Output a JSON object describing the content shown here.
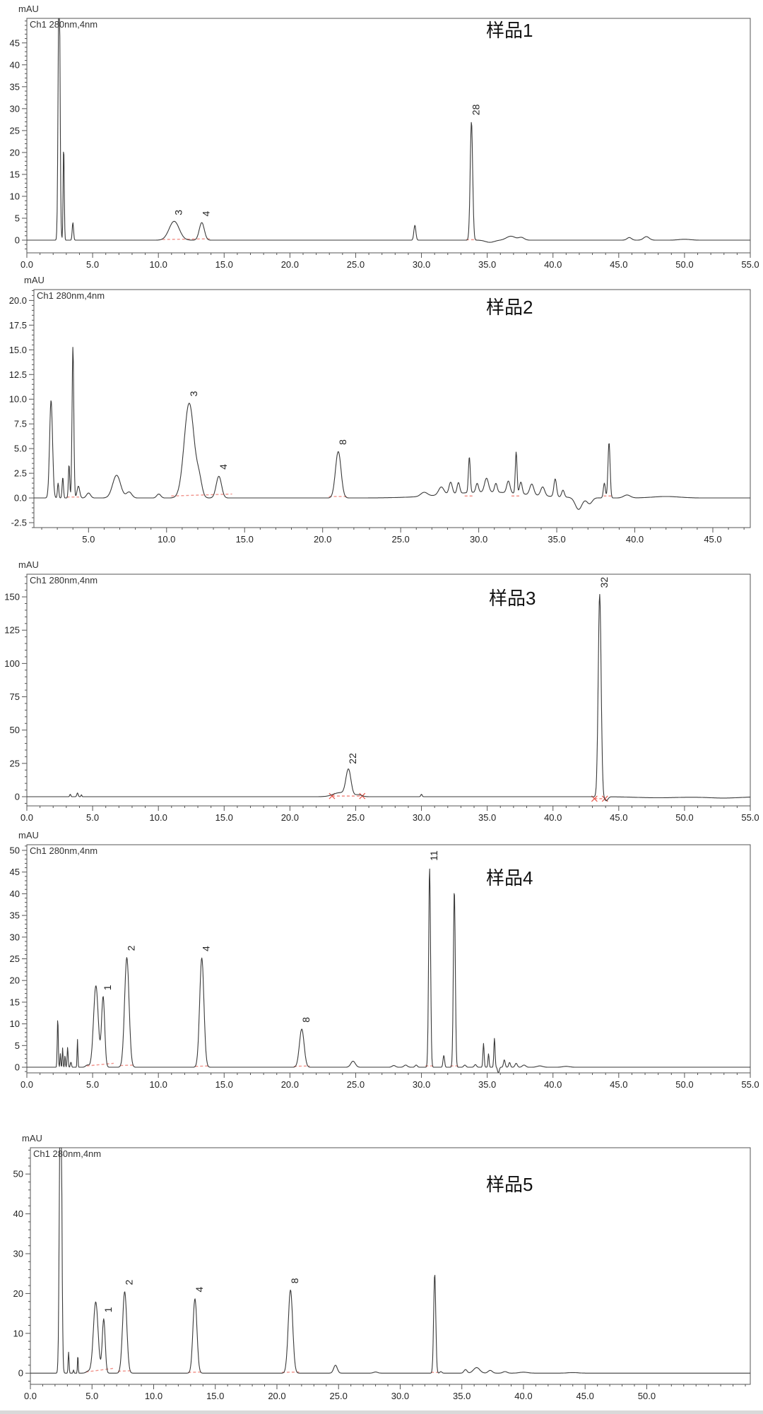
{
  "page": {
    "background": "#ffffff"
  },
  "chart_data": [
    {
      "type": "line",
      "sample_label": "样品1",
      "y_axis_title": "mAU",
      "channel_label": "Ch1 280nm,4nm",
      "xlabel": "",
      "ylabel": "mAU",
      "xlim": [
        0,
        55
      ],
      "ylim": [
        -2.9,
        50.6
      ],
      "x_ticks": {
        "start": 0,
        "end": 55,
        "major": 5,
        "minor": 1,
        "decimals": 1
      },
      "y_ticks": {
        "start": 0,
        "end": 45,
        "major": 5,
        "minor": 1,
        "decimals": 0
      },
      "peaks": [
        [
          2.45,
          68,
          0.16
        ],
        [
          2.8,
          21.5,
          0.1
        ],
        [
          3.5,
          4,
          0.12
        ],
        [
          11.2,
          4.3,
          0.9
        ],
        [
          13.3,
          4.0,
          0.45
        ],
        [
          29.5,
          3.4,
          0.18
        ],
        [
          33.8,
          27,
          0.22
        ],
        [
          35.2,
          -0.5,
          0.8
        ],
        [
          36.8,
          0.9,
          0.8
        ],
        [
          37.6,
          0.6,
          0.5
        ],
        [
          45.8,
          0.6,
          0.4
        ],
        [
          47.1,
          0.8,
          0.5
        ],
        [
          50.0,
          0.2,
          1.0
        ]
      ],
      "peak_labels": [
        [
          "3",
          11.2,
          4.4
        ],
        [
          "4",
          13.3,
          4.1
        ],
        [
          "28",
          33.8,
          27.2
        ]
      ],
      "baselines": [
        [
          10.3,
          0.15,
          14.0,
          0.3
        ],
        [
          33.4,
          0.1,
          34.2,
          0.1
        ]
      ],
      "baseline_marks": [],
      "colors": {
        "trace": "#3a3a3a",
        "baseline": "#f1938b",
        "axis": "#555555",
        "text": "#222222"
      }
    },
    {
      "type": "line",
      "sample_label": "样品2",
      "y_axis_title": "mAU",
      "channel_label": "Ch1 280nm,4nm",
      "xlabel": "",
      "ylabel": "mAU",
      "xlim": [
        1.5,
        47.4
      ],
      "ylim": [
        -3.0,
        21.1
      ],
      "x_ticks": {
        "start": 5,
        "end": 45,
        "major": 5,
        "minor": 1,
        "decimals": 1
      },
      "y_ticks": {
        "start": -2.5,
        "end": 20,
        "major": 2.5,
        "minor": 0.5,
        "decimals": 1
      },
      "peaks": [
        [
          2.6,
          9.9,
          0.22
        ],
        [
          3.05,
          1.5,
          0.1
        ],
        [
          3.35,
          2.1,
          0.1
        ],
        [
          3.75,
          3.4,
          0.1
        ],
        [
          4.0,
          15.3,
          0.13
        ],
        [
          4.35,
          1.2,
          0.2
        ],
        [
          5.0,
          0.5,
          0.3
        ],
        [
          6.8,
          2.3,
          0.6
        ],
        [
          7.6,
          0.6,
          0.4
        ],
        [
          9.5,
          0.4,
          0.3
        ],
        [
          11.45,
          9.6,
          0.75
        ],
        [
          12.1,
          1.5,
          0.4
        ],
        [
          13.35,
          2.2,
          0.4
        ],
        [
          21.0,
          4.7,
          0.42
        ],
        [
          26.5,
          0.4,
          0.5
        ],
        [
          27.6,
          0.8,
          0.4
        ],
        [
          28.2,
          1.2,
          0.25
        ],
        [
          28.7,
          1.1,
          0.2
        ],
        [
          29.4,
          3.6,
          0.14
        ],
        [
          29.9,
          0.9,
          0.2
        ],
        [
          30.5,
          1.4,
          0.3
        ],
        [
          31.1,
          0.9,
          0.2
        ],
        [
          30.5,
          0.6,
          6.0
        ],
        [
          31.9,
          1.2,
          0.25
        ],
        [
          32.4,
          4.2,
          0.13
        ],
        [
          32.7,
          1.2,
          0.2
        ],
        [
          33.4,
          1.1,
          0.3
        ],
        [
          34.1,
          0.9,
          0.3
        ],
        [
          34.9,
          1.8,
          0.2
        ],
        [
          35.4,
          0.7,
          0.2
        ],
        [
          36.4,
          -1.2,
          0.5
        ],
        [
          37.1,
          -0.6,
          0.4
        ],
        [
          38.05,
          1.5,
          0.15
        ],
        [
          38.35,
          5.6,
          0.16
        ],
        [
          39.5,
          0.3,
          0.5
        ],
        [
          42.0,
          0.15,
          2.0
        ]
      ],
      "peak_labels": [
        [
          "3",
          11.45,
          9.7
        ],
        [
          "4",
          13.35,
          2.3
        ],
        [
          "8",
          21.0,
          4.8
        ]
      ],
      "baselines": [
        [
          3.6,
          0.1,
          4.4,
          0.1
        ],
        [
          10.3,
          0.2,
          14.2,
          0.4
        ],
        [
          20.4,
          0.15,
          21.6,
          0.15
        ],
        [
          29.1,
          0.2,
          29.7,
          0.2
        ],
        [
          32.1,
          0.2,
          32.7,
          0.2
        ],
        [
          38.0,
          0.2,
          38.6,
          0.2
        ]
      ],
      "baseline_marks": [],
      "colors": {
        "trace": "#3a3a3a",
        "baseline": "#f1938b",
        "axis": "#555555",
        "text": "#222222"
      }
    },
    {
      "type": "line",
      "sample_label": "样品3",
      "y_axis_title": "mAU",
      "channel_label": "Ch1 280nm,4nm",
      "xlabel": "",
      "ylabel": "mAU",
      "xlim": [
        0,
        55
      ],
      "ylim": [
        -6.9,
        167
      ],
      "x_ticks": {
        "start": 0,
        "end": 55,
        "major": 5,
        "minor": 1,
        "decimals": 1
      },
      "y_ticks": {
        "start": 0,
        "end": 150,
        "major": 25,
        "minor": 5,
        "decimals": 0
      },
      "peaks": [
        [
          3.3,
          1.8,
          0.1
        ],
        [
          3.85,
          2.8,
          0.12
        ],
        [
          4.15,
          1.5,
          0.08
        ],
        [
          23.8,
          3.0,
          1.2
        ],
        [
          24.45,
          19.5,
          0.45
        ],
        [
          25.2,
          1.5,
          0.6
        ],
        [
          30.0,
          1.8,
          0.12
        ],
        [
          43.55,
          152,
          0.26
        ],
        [
          44.05,
          -3.0,
          0.3
        ],
        [
          48.0,
          -0.8,
          4.0
        ],
        [
          53.0,
          -1.0,
          3.0
        ]
      ],
      "peak_labels": [
        [
          "22",
          24.45,
          20.3
        ],
        [
          "32",
          43.55,
          152.5
        ]
      ],
      "baselines": [
        [
          23.2,
          0.5,
          25.5,
          0.5
        ],
        [
          43.15,
          -1.5,
          43.95,
          -1.5
        ]
      ],
      "baseline_marks": [
        [
          23.2,
          0.5
        ],
        [
          25.5,
          0.5
        ],
        [
          43.15,
          -1.5
        ],
        [
          43.95,
          -1.5
        ]
      ],
      "colors": {
        "trace": "#3a3a3a",
        "baseline": "#f08078",
        "axis": "#555555",
        "text": "#222222"
      }
    },
    {
      "type": "line",
      "sample_label": "样品4",
      "y_axis_title": "mAU",
      "channel_label": "Ch1 280nm,4nm",
      "xlabel": "",
      "ylabel": "mAU",
      "xlim": [
        0,
        55
      ],
      "ylim": [
        -1.3,
        51.3
      ],
      "x_ticks": {
        "start": 0,
        "end": 55,
        "major": 5,
        "minor": 1,
        "decimals": 1
      },
      "y_ticks": {
        "start": 0,
        "end": 50,
        "major": 5,
        "minor": 1,
        "decimals": 0
      },
      "peaks": [
        [
          2.35,
          11.3,
          0.09
        ],
        [
          2.55,
          3.2,
          0.07
        ],
        [
          2.72,
          4.5,
          0.07
        ],
        [
          2.9,
          2.8,
          0.07
        ],
        [
          3.1,
          4.6,
          0.09
        ],
        [
          3.35,
          1.2,
          0.1
        ],
        [
          3.85,
          6.4,
          0.07
        ],
        [
          4.6,
          0.5,
          0.3
        ],
        [
          5.25,
          18.8,
          0.42
        ],
        [
          5.8,
          16.2,
          0.28
        ],
        [
          7.6,
          25.3,
          0.4
        ],
        [
          13.3,
          25.2,
          0.38
        ],
        [
          20.9,
          8.8,
          0.42
        ],
        [
          24.8,
          1.4,
          0.4
        ],
        [
          27.9,
          0.4,
          0.3
        ],
        [
          28.8,
          0.5,
          0.3
        ],
        [
          29.6,
          0.5,
          0.2
        ],
        [
          30.62,
          46,
          0.17
        ],
        [
          31.7,
          2.7,
          0.14
        ],
        [
          32.5,
          41,
          0.17
        ],
        [
          33.3,
          0.5,
          0.2
        ],
        [
          34.1,
          0.6,
          0.2
        ],
        [
          34.72,
          5.5,
          0.11
        ],
        [
          35.1,
          3.1,
          0.1
        ],
        [
          35.55,
          6.7,
          0.11
        ],
        [
          35.85,
          -1.3,
          0.15
        ],
        [
          36.3,
          1.7,
          0.15
        ],
        [
          36.7,
          1.1,
          0.15
        ],
        [
          37.2,
          0.9,
          0.2
        ],
        [
          37.8,
          0.5,
          0.3
        ],
        [
          39.0,
          0.3,
          0.5
        ],
        [
          41.0,
          0.2,
          0.6
        ]
      ],
      "peak_labels": [
        [
          "1",
          5.8,
          16.4
        ],
        [
          "2",
          7.6,
          25.5
        ],
        [
          "4",
          13.3,
          25.4
        ],
        [
          "8",
          20.9,
          9.0
        ],
        [
          "11",
          30.62,
          46.3
        ]
      ],
      "baselines": [
        [
          4.55,
          0.3,
          6.6,
          0.9
        ],
        [
          7.1,
          0.4,
          8.2,
          0.5
        ],
        [
          12.8,
          0.2,
          13.9,
          0.3
        ],
        [
          20.3,
          0.2,
          21.5,
          0.3
        ],
        [
          30.3,
          0.3,
          30.9,
          0.3
        ],
        [
          32.2,
          0.3,
          32.8,
          0.3
        ]
      ],
      "baseline_marks": [],
      "colors": {
        "trace": "#3a3a3a",
        "baseline": "#f1938b",
        "axis": "#555555",
        "text": "#222222"
      }
    },
    {
      "type": "line",
      "sample_label": "样品5",
      "y_axis_title": "mAU",
      "channel_label": "Ch1 280nm,4nm",
      "xlabel": "",
      "ylabel": "mAU",
      "xlim": [
        0,
        58.4
      ],
      "ylim": [
        -2.8,
        56.6
      ],
      "x_ticks": {
        "start": 0,
        "end": 50,
        "major": 5,
        "minor": 1,
        "decimals": 1
      },
      "y_ticks": {
        "start": 0,
        "end": 50,
        "major": 10,
        "minor": 2,
        "decimals": 0
      },
      "peaks": [
        [
          2.45,
          95,
          0.2
        ],
        [
          3.1,
          5.3,
          0.09
        ],
        [
          3.5,
          0.8,
          0.08
        ],
        [
          3.85,
          4.7,
          0.07
        ],
        [
          4.7,
          0.5,
          0.4
        ],
        [
          5.3,
          17.9,
          0.45
        ],
        [
          5.95,
          13.6,
          0.28
        ],
        [
          7.65,
          20.5,
          0.4
        ],
        [
          13.35,
          18.7,
          0.38
        ],
        [
          21.1,
          20.9,
          0.42
        ],
        [
          24.75,
          2.0,
          0.35
        ],
        [
          28.0,
          0.3,
          0.4
        ],
        [
          32.8,
          24.9,
          0.2
        ],
        [
          33.3,
          0.4,
          0.2
        ],
        [
          35.3,
          0.9,
          0.3
        ],
        [
          36.2,
          1.4,
          0.6
        ],
        [
          37.3,
          0.7,
          0.4
        ],
        [
          38.5,
          0.4,
          0.4
        ],
        [
          40.0,
          0.25,
          0.8
        ],
        [
          44.0,
          0.15,
          1.0
        ]
      ],
      "peak_labels": [
        [
          "1",
          5.95,
          13.8
        ],
        [
          "2",
          7.65,
          20.7
        ],
        [
          "4",
          13.35,
          18.9
        ],
        [
          "8",
          21.1,
          21.1
        ]
      ],
      "baselines": [
        [
          4.5,
          0.3,
          6.7,
          1.2
        ],
        [
          7.1,
          0.5,
          8.2,
          0.6
        ],
        [
          12.8,
          0.2,
          13.9,
          0.3
        ],
        [
          20.4,
          0.2,
          21.8,
          0.3
        ],
        [
          32.5,
          0.2,
          33.1,
          0.2
        ]
      ],
      "baseline_marks": [],
      "colors": {
        "trace": "#3a3a3a",
        "baseline": "#f1938b",
        "axis": "#555555",
        "text": "#222222"
      }
    }
  ]
}
